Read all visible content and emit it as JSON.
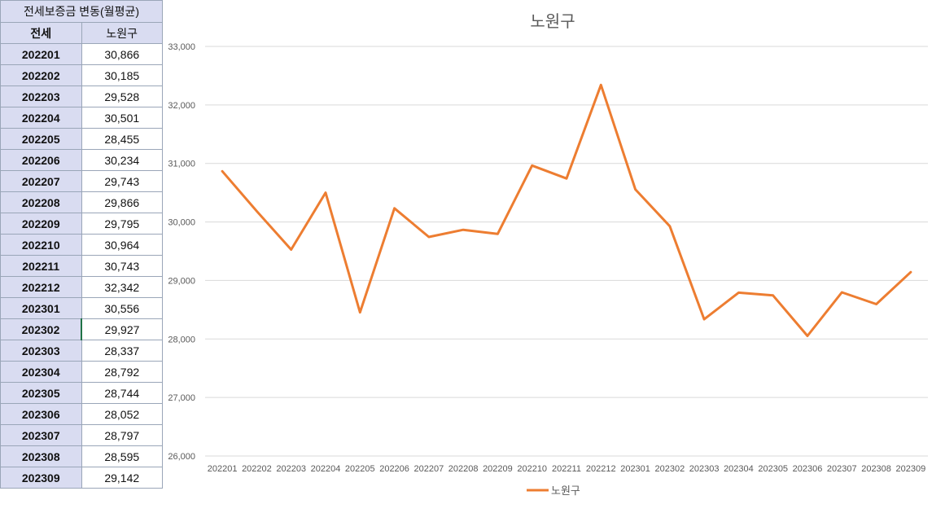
{
  "table": {
    "title": "전세보증금 변동(월평균)",
    "col_headers": [
      "전세",
      "노원구"
    ],
    "rows": [
      {
        "ym": "202201",
        "value": "30,866"
      },
      {
        "ym": "202202",
        "value": "30,185"
      },
      {
        "ym": "202203",
        "value": "29,528"
      },
      {
        "ym": "202204",
        "value": "30,501"
      },
      {
        "ym": "202205",
        "value": "28,455"
      },
      {
        "ym": "202206",
        "value": "30,234"
      },
      {
        "ym": "202207",
        "value": "29,743"
      },
      {
        "ym": "202208",
        "value": "29,866"
      },
      {
        "ym": "202209",
        "value": "29,795"
      },
      {
        "ym": "202210",
        "value": "30,964"
      },
      {
        "ym": "202211",
        "value": "30,743"
      },
      {
        "ym": "202212",
        "value": "32,342"
      },
      {
        "ym": "202301",
        "value": "30,556"
      },
      {
        "ym": "202302",
        "value": "29,927"
      },
      {
        "ym": "202303",
        "value": "28,337"
      },
      {
        "ym": "202304",
        "value": "28,792"
      },
      {
        "ym": "202305",
        "value": "28,744"
      },
      {
        "ym": "202306",
        "value": "28,052"
      },
      {
        "ym": "202307",
        "value": "28,797"
      },
      {
        "ym": "202308",
        "value": "28,595"
      },
      {
        "ym": "202309",
        "value": "29,142"
      }
    ]
  },
  "chart_data": {
    "type": "line",
    "title": "노원구",
    "categories": [
      "202201",
      "202202",
      "202203",
      "202204",
      "202205",
      "202206",
      "202207",
      "202208",
      "202209",
      "202210",
      "202211",
      "202212",
      "202301",
      "202302",
      "202303",
      "202304",
      "202305",
      "202306",
      "202307",
      "202308",
      "202309"
    ],
    "series": [
      {
        "name": "노원구",
        "color": "#ed7d31",
        "values": [
          30866,
          30185,
          29528,
          30501,
          28455,
          30234,
          29743,
          29866,
          29795,
          30964,
          30743,
          32342,
          30556,
          29927,
          28337,
          28792,
          28744,
          28052,
          28797,
          28595,
          29142
        ]
      }
    ],
    "ylim": [
      26000,
      33000
    ],
    "yticks": [
      "26,000",
      "27,000",
      "28,000",
      "29,000",
      "30,000",
      "31,000",
      "32,000",
      "33,000"
    ],
    "grid": true,
    "legend_position": "bottom"
  }
}
